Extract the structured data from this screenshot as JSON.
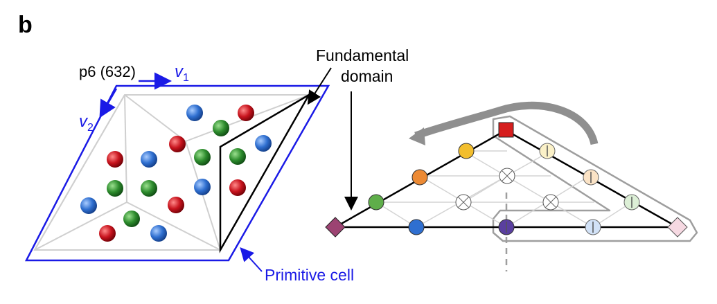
{
  "panel_label": "b",
  "group_label": "p6 (632)",
  "vectors": {
    "v1": "v",
    "v1_sub": "1",
    "v2": "v",
    "v2_sub": "2"
  },
  "annotations": {
    "fundamental_line1": "Fundamental",
    "fundamental_line2": "domain",
    "primitive_cell": "Primitive cell"
  },
  "colors": {
    "primitive_cell": "#1a1ae6",
    "red": "#c8141e",
    "green": "#2d8c2d",
    "blue": "#2f6fd0",
    "yellow": "#f2be2e",
    "orange": "#ec8a34",
    "light_green": "#5fae4a",
    "purple": "#5a3fa0",
    "magenta": "#9c4372",
    "pale_yellow": "#fbf1c8",
    "pale_orange": "#fbe3c6",
    "pale_green": "#dcefd6",
    "pale_blue": "#d2e2f7",
    "pale_pink": "#f6d9e2",
    "grid": "#cfcfcf",
    "arrow_gray": "#8f8f8f"
  }
}
